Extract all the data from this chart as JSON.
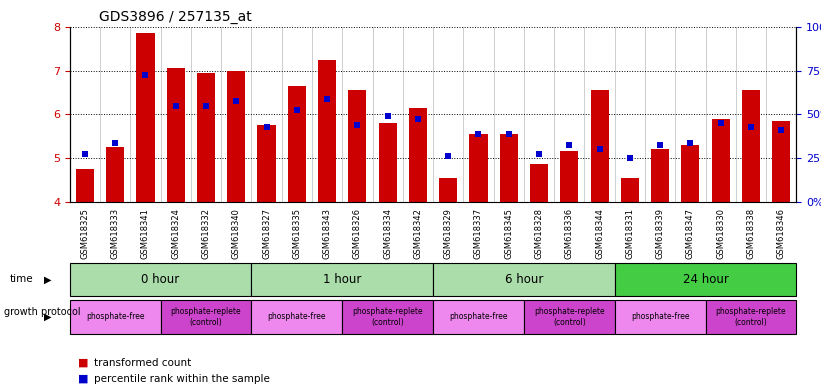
{
  "title": "GDS3896 / 257135_at",
  "samples": [
    "GSM618325",
    "GSM618333",
    "GSM618341",
    "GSM618324",
    "GSM618332",
    "GSM618340",
    "GSM618327",
    "GSM618335",
    "GSM618343",
    "GSM618326",
    "GSM618334",
    "GSM618342",
    "GSM618329",
    "GSM618337",
    "GSM618345",
    "GSM618328",
    "GSM618336",
    "GSM618344",
    "GSM618331",
    "GSM618339",
    "GSM618347",
    "GSM618330",
    "GSM618338",
    "GSM618346"
  ],
  "bar_values": [
    4.75,
    5.25,
    7.85,
    7.05,
    6.95,
    7.0,
    5.75,
    6.65,
    7.25,
    6.55,
    5.8,
    6.15,
    4.55,
    5.55,
    5.55,
    4.85,
    5.15,
    6.55,
    4.55,
    5.2,
    5.3,
    5.9,
    6.55,
    5.85
  ],
  "blue_values": [
    5.1,
    5.35,
    6.9,
    6.2,
    6.2,
    6.3,
    5.7,
    6.1,
    6.35,
    5.75,
    5.95,
    5.9,
    5.05,
    5.55,
    5.55,
    5.1,
    5.3,
    5.2,
    5.0,
    5.3,
    5.35,
    5.8,
    5.7,
    5.65
  ],
  "ylim_left": [
    4,
    8
  ],
  "ylim_right": [
    0,
    100
  ],
  "yticks_left": [
    4,
    5,
    6,
    7,
    8
  ],
  "yticks_right": [
    0,
    25,
    50,
    75,
    100
  ],
  "ytick_labels_right": [
    "0%",
    "25%",
    "50%",
    "75%",
    "100%"
  ],
  "bar_color": "#cc0000",
  "blue_color": "#0000cc",
  "grid_color": "#000000",
  "time_groups": [
    {
      "label": "0 hour",
      "start": 0,
      "end": 6,
      "color": "#aaddaa"
    },
    {
      "label": "1 hour",
      "start": 6,
      "end": 12,
      "color": "#aaddaa"
    },
    {
      "label": "6 hour",
      "start": 12,
      "end": 18,
      "color": "#aaddaa"
    },
    {
      "label": "24 hour",
      "start": 18,
      "end": 24,
      "color": "#44cc44"
    }
  ],
  "protocol_groups": [
    {
      "label": "phosphate-free",
      "start": 0,
      "end": 3,
      "color": "#ee88ee"
    },
    {
      "label": "phosphate-replete\n(control)",
      "start": 3,
      "end": 6,
      "color": "#cc44cc"
    },
    {
      "label": "phosphate-free",
      "start": 6,
      "end": 9,
      "color": "#ee88ee"
    },
    {
      "label": "phosphate-replete\n(control)",
      "start": 9,
      "end": 12,
      "color": "#cc44cc"
    },
    {
      "label": "phosphate-free",
      "start": 12,
      "end": 15,
      "color": "#ee88ee"
    },
    {
      "label": "phosphate-replete\n(control)",
      "start": 15,
      "end": 18,
      "color": "#cc44cc"
    },
    {
      "label": "phosphate-free",
      "start": 18,
      "end": 21,
      "color": "#ee88ee"
    },
    {
      "label": "phosphate-replete\n(control)",
      "start": 21,
      "end": 24,
      "color": "#cc44cc"
    }
  ],
  "tick_color_left": "#cc0000",
  "tick_color_right": "#0000cc",
  "bar_width": 0.6,
  "blue_marker_size": 5,
  "bg_color": "#ffffff"
}
